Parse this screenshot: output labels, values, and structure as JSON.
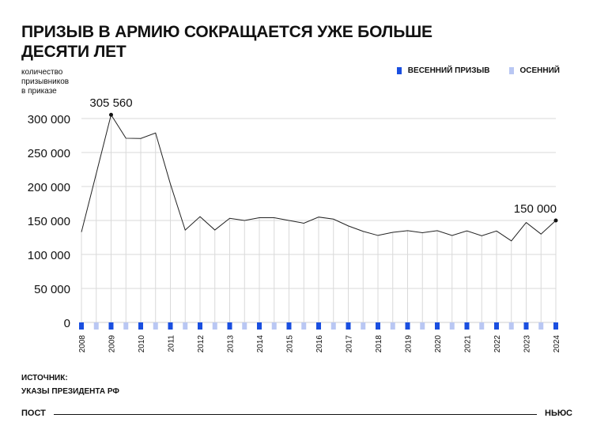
{
  "header": {
    "title_line1": "ПРИЗЫВ В АРМИЮ СОКРАЩАЕТСЯ УЖЕ БОЛЬШЕ",
    "title_line2": "ДЕСЯТИ ЛЕТ"
  },
  "ylabel": {
    "line1": "количество",
    "line2": "призывников",
    "line3": "в приказе"
  },
  "legend": {
    "spring": "ВЕСЕННИЙ ПРИЗЫВ",
    "autumn": "ОСЕННИЙ"
  },
  "colors": {
    "spring": "#1a4fe0",
    "autumn": "#b9c7f3",
    "line": "#222222",
    "grid": "#d9d9d9"
  },
  "chart_data": {
    "type": "line",
    "yticks": [
      "0",
      "50 000",
      "100 000",
      "150 000",
      "200 000",
      "250 000",
      "300 000"
    ],
    "ylim": [
      0,
      300000
    ],
    "grid": true,
    "legend_position": "top-right",
    "x_labels": [
      "2008",
      "2009",
      "2010",
      "2011",
      "2012",
      "2013",
      "2014",
      "2015",
      "2016",
      "2017",
      "2018",
      "2019",
      "2020",
      "2021",
      "2022",
      "2023",
      "2024"
    ],
    "series": [
      {
        "name": "Призыв",
        "points": [
          {
            "label": "2008 весна",
            "value": 133000
          },
          {
            "label": "2008 осень",
            "value": 219000
          },
          {
            "label": "2009 весна",
            "value": 305560
          },
          {
            "label": "2009 осень",
            "value": 271000
          },
          {
            "label": "2010 весна",
            "value": 270600
          },
          {
            "label": "2010 осень",
            "value": 278800
          },
          {
            "label": "2011 весна",
            "value": 203700
          },
          {
            "label": "2011 осень",
            "value": 135850
          },
          {
            "label": "2012 весна",
            "value": 155600
          },
          {
            "label": "2012 осень",
            "value": 136000
          },
          {
            "label": "2013 весна",
            "value": 153200
          },
          {
            "label": "2013 осень",
            "value": 150000
          },
          {
            "label": "2014 весна",
            "value": 154100
          },
          {
            "label": "2014 осень",
            "value": 154000
          },
          {
            "label": "2015 весна",
            "value": 150000
          },
          {
            "label": "2015 осень",
            "value": 146000
          },
          {
            "label": "2016 весна",
            "value": 155000
          },
          {
            "label": "2016 осень",
            "value": 152000
          },
          {
            "label": "2017 весна",
            "value": 142000
          },
          {
            "label": "2017 осень",
            "value": 134000
          },
          {
            "label": "2018 весна",
            "value": 128000
          },
          {
            "label": "2018 осень",
            "value": 132500
          },
          {
            "label": "2019 весна",
            "value": 135000
          },
          {
            "label": "2019 осень",
            "value": 132000
          },
          {
            "label": "2020 весна",
            "value": 135000
          },
          {
            "label": "2020 осень",
            "value": 128000
          },
          {
            "label": "2021 весна",
            "value": 134650
          },
          {
            "label": "2021 осень",
            "value": 127500
          },
          {
            "label": "2022 весна",
            "value": 134500
          },
          {
            "label": "2022 осень",
            "value": 120000
          },
          {
            "label": "2023 весна",
            "value": 147000
          },
          {
            "label": "2023 осень",
            "value": 130000
          },
          {
            "label": "2024 весна",
            "value": 150000
          }
        ]
      }
    ],
    "annotations": [
      {
        "point_index": 2,
        "text": "305 560"
      },
      {
        "point_index": 32,
        "text": "150 000"
      }
    ]
  },
  "source": {
    "label": "ИСТОЧНИК:",
    "text": "УКАЗЫ ПРЕЗИДЕНТА РФ"
  },
  "footer": {
    "left": "ПОСТ",
    "right": "НЬЮС"
  }
}
